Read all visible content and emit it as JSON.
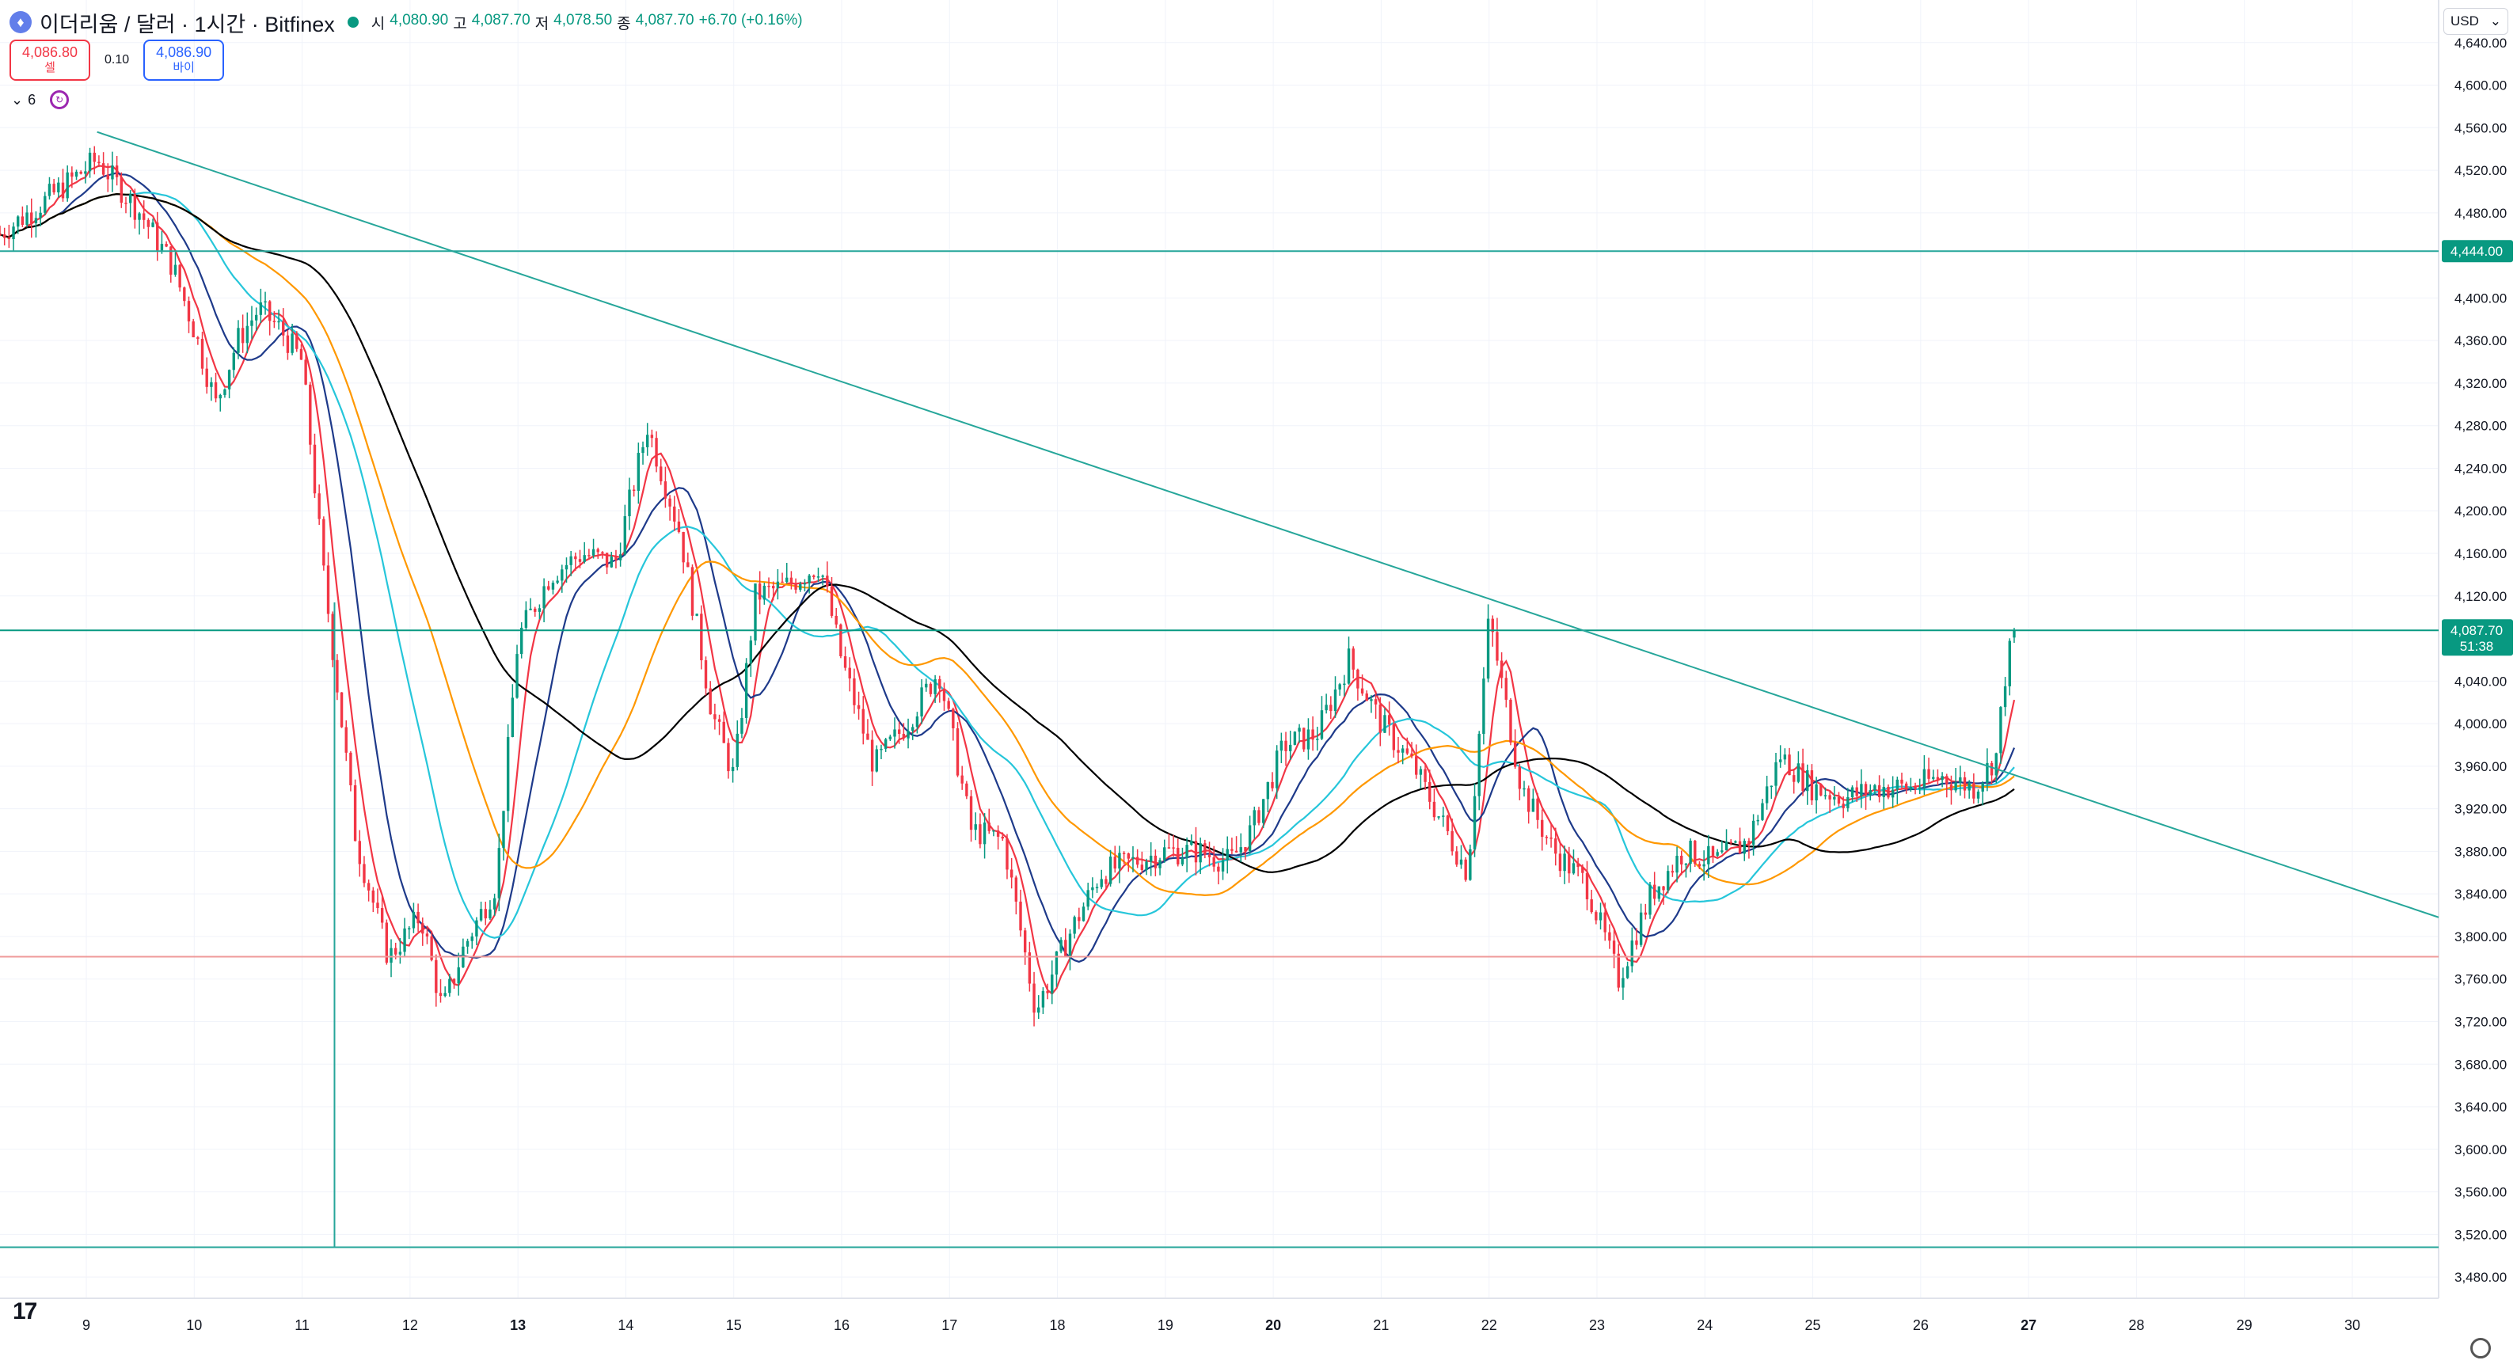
{
  "header": {
    "title": "이더리움 / 달러 · 1시간 · Bitfinex",
    "open_label": "시",
    "open": "4,080.90",
    "high_label": "고",
    "high": "4,087.70",
    "low_label": "저",
    "low": "4,078.50",
    "close_label": "종",
    "close": "4,087.70",
    "change": "+6.70 (+0.16%)"
  },
  "trade": {
    "sell_price": "4,086.80",
    "sell_label": "셀",
    "spread": "0.10",
    "buy_price": "4,086.90",
    "buy_label": "바이"
  },
  "indicators": {
    "count": "6"
  },
  "currency": "USD",
  "colors": {
    "up": "#089981",
    "down": "#f23645",
    "trendline": "#26a69a",
    "support": "#ef9a9a"
  },
  "chart_data": {
    "type": "candlestick",
    "ylim": [
      3460,
      4680
    ],
    "y_ticks": [
      "4,640.00",
      "4,600.00",
      "4,560.00",
      "4,520.00",
      "4,480.00",
      "4,400.00",
      "4,360.00",
      "4,320.00",
      "4,280.00",
      "4,240.00",
      "4,200.00",
      "4,160.00",
      "4,120.00",
      "4,040.00",
      "4,000.00",
      "3,960.00",
      "3,920.00",
      "3,880.00",
      "3,840.00",
      "3,800.00",
      "3,760.00",
      "3,720.00",
      "3,680.00",
      "3,640.00",
      "3,600.00",
      "3,560.00",
      "3,520.00",
      "3,480.00"
    ],
    "x_ticks": [
      {
        "label": "9",
        "day": 9
      },
      {
        "label": "10",
        "day": 10
      },
      {
        "label": "11",
        "day": 11
      },
      {
        "label": "12",
        "day": 12
      },
      {
        "label": "13",
        "day": 13
      },
      {
        "label": "14",
        "day": 14
      },
      {
        "label": "15",
        "day": 15
      },
      {
        "label": "16",
        "day": 16
      },
      {
        "label": "17",
        "day": 17
      },
      {
        "label": "18",
        "day": 18
      },
      {
        "label": "19",
        "day": 19
      },
      {
        "label": "20",
        "day": 20
      },
      {
        "label": "21",
        "day": 21
      },
      {
        "label": "22",
        "day": 22
      },
      {
        "label": "23",
        "day": 23
      },
      {
        "label": "24",
        "day": 24
      },
      {
        "label": "25",
        "day": 25
      },
      {
        "label": "26",
        "day": 26
      },
      {
        "label": "27",
        "day": 27
      },
      {
        "label": "28",
        "day": 28
      },
      {
        "label": "29",
        "day": 29
      },
      {
        "label": "30",
        "day": 30
      }
    ],
    "x_range_days": [
      8.2,
      30.8
    ],
    "price_labels": [
      {
        "value": 4444.0,
        "text": "4,444.00"
      },
      {
        "value": 4087.7,
        "text": "4,087.70",
        "sub": "51:38"
      }
    ],
    "horizontal_lines": [
      {
        "name": "resistance-line",
        "value": 4444,
        "color": "#26a69a"
      },
      {
        "name": "current-price-line",
        "value": 4087.7,
        "color": "#089981"
      },
      {
        "name": "support-line",
        "value": 3781,
        "color": "#ef9a9a"
      },
      {
        "name": "low-line",
        "value": 3508,
        "color": "#26a69a"
      }
    ],
    "trendline": {
      "from": {
        "day": 9.1,
        "price": 4556
      },
      "to": {
        "day": 30.8,
        "price": 3818
      },
      "color": "#26a69a"
    },
    "wick_line": {
      "day": 11.3,
      "from": 4114,
      "to": 3508,
      "color": "#26a69a"
    },
    "path": [
      [
        8.2,
        4460
      ],
      [
        8.6,
        4490
      ],
      [
        9.1,
        4530
      ],
      [
        9.5,
        4480
      ],
      [
        9.8,
        4430
      ],
      [
        10.0,
        4370
      ],
      [
        10.2,
        4300
      ],
      [
        10.4,
        4360
      ],
      [
        10.6,
        4390
      ],
      [
        10.8,
        4370
      ],
      [
        11.0,
        4340
      ],
      [
        11.2,
        4140
      ],
      [
        11.5,
        3890
      ],
      [
        11.8,
        3780
      ],
      [
        12.1,
        3820
      ],
      [
        12.3,
        3730
      ],
      [
        12.5,
        3790
      ],
      [
        12.8,
        3850
      ],
      [
        13.0,
        4080
      ],
      [
        13.3,
        4140
      ],
      [
        13.6,
        4160
      ],
      [
        13.9,
        4150
      ],
      [
        14.2,
        4280
      ],
      [
        14.5,
        4180
      ],
      [
        14.8,
        4010
      ],
      [
        15.0,
        3950
      ],
      [
        15.2,
        4120
      ],
      [
        15.5,
        4130
      ],
      [
        15.8,
        4150
      ],
      [
        16.0,
        4060
      ],
      [
        16.3,
        3960
      ],
      [
        16.6,
        4000
      ],
      [
        16.9,
        4050
      ],
      [
        17.2,
        3900
      ],
      [
        17.5,
        3890
      ],
      [
        17.8,
        3730
      ],
      [
        18.1,
        3800
      ],
      [
        18.4,
        3860
      ],
      [
        18.7,
        3870
      ],
      [
        19.0,
        3880
      ],
      [
        19.3,
        3880
      ],
      [
        19.6,
        3870
      ],
      [
        19.8,
        3900
      ],
      [
        20.1,
        3980
      ],
      [
        20.4,
        3990
      ],
      [
        20.7,
        4060
      ],
      [
        21.0,
        4000
      ],
      [
        21.3,
        3960
      ],
      [
        21.6,
        3900
      ],
      [
        21.8,
        3860
      ],
      [
        22.0,
        4100
      ],
      [
        22.3,
        3940
      ],
      [
        22.6,
        3880
      ],
      [
        22.9,
        3850
      ],
      [
        23.2,
        3760
      ],
      [
        23.5,
        3840
      ],
      [
        23.8,
        3880
      ],
      [
        24.1,
        3870
      ],
      [
        24.4,
        3890
      ],
      [
        24.7,
        3970
      ],
      [
        25.0,
        3940
      ],
      [
        25.3,
        3930
      ],
      [
        25.6,
        3940
      ],
      [
        25.9,
        3940
      ],
      [
        26.2,
        3950
      ],
      [
        26.5,
        3940
      ],
      [
        26.7,
        3970
      ],
      [
        26.8,
        4060
      ],
      [
        26.9,
        4087
      ]
    ],
    "series": [
      {
        "color": "#f23645",
        "lag": 6
      },
      {
        "color": "#1e3a8a",
        "lag": 14
      },
      {
        "color": "#26c6da",
        "lag": 30
      },
      {
        "color": "#ff9800",
        "lag": 45
      },
      {
        "color": "#000000",
        "lag": 70
      }
    ]
  }
}
